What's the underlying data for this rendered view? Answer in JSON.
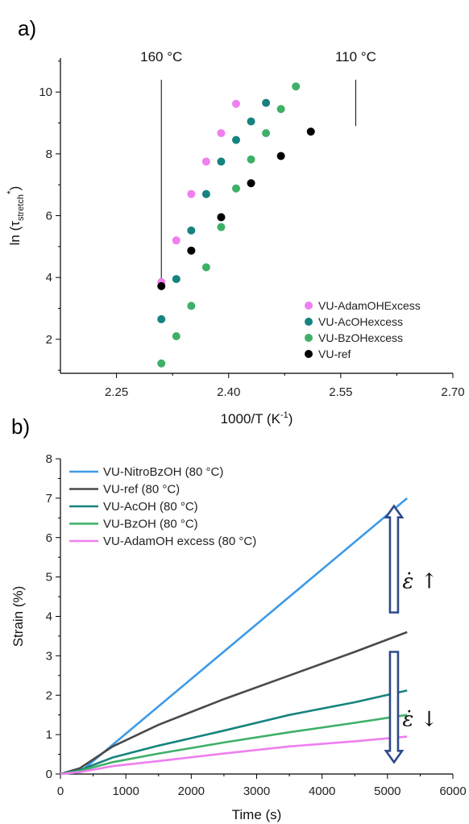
{
  "panel_a_label": "a)",
  "panel_b_label": "b)",
  "chart_data": [
    {
      "type": "scatter",
      "xlabel": "1000/T (K",
      "xlabel_sup": "-1",
      "xlabel_end": ")",
      "ylabel": "ln (τ",
      "ylabel_sub": "stretch",
      "ylabel_sup": "*",
      "ylabel_end": ")",
      "xlim": [
        2.175,
        2.7
      ],
      "ylim": [
        0.9,
        11.1
      ],
      "x_ticks": [
        2.25,
        2.4,
        2.55,
        2.7
      ],
      "x_tick_labels": [
        "2.25",
        "2.40",
        "2.55",
        "2.70"
      ],
      "y_ticks": [
        2,
        4,
        6,
        8,
        10
      ],
      "y_tick_labels": [
        "2",
        "4",
        "6",
        "8",
        "10"
      ],
      "annotations": [
        {
          "text": "160 °C",
          "x": 2.31,
          "y_text": 11.0,
          "y_line_top": 10.4,
          "y_line_bottom": 3.9
        },
        {
          "text": "110 °C",
          "x": 2.57,
          "y_text": 11.0,
          "y_line_top": 10.4,
          "y_line_bottom": 8.9
        }
      ],
      "legend_position": "bottom-right",
      "series": [
        {
          "name": "VU-AdamOHExcess",
          "color": "#ef7fef",
          "x": [
            2.31,
            2.33,
            2.35,
            2.37,
            2.39,
            2.41
          ],
          "y": [
            3.85,
            5.2,
            6.7,
            7.75,
            8.67,
            9.62
          ]
        },
        {
          "name": "VU-AcOHexcess",
          "color": "#16837f",
          "x": [
            2.31,
            2.33,
            2.35,
            2.37,
            2.39,
            2.41,
            2.43,
            2.45,
            2.47
          ],
          "y": [
            2.65,
            3.95,
            5.52,
            6.7,
            7.75,
            8.45,
            9.05,
            9.65,
            null
          ]
        },
        {
          "name": "VU-BzOHexcess",
          "color": "#3eb067",
          "x": [
            2.31,
            2.33,
            2.35,
            2.37,
            2.39,
            2.41,
            2.43,
            2.45,
            2.47,
            2.49,
            2.51
          ],
          "y": [
            1.22,
            2.1,
            3.08,
            4.33,
            5.63,
            6.88,
            7.82,
            8.67,
            9.45,
            10.18,
            null
          ]
        },
        {
          "name": "VU-ref",
          "color": "#000000",
          "x": [
            2.31,
            2.35,
            2.39,
            2.43,
            2.47,
            2.51
          ],
          "y": [
            3.72,
            4.87,
            5.95,
            7.05,
            7.93,
            8.72
          ]
        }
      ]
    },
    {
      "type": "line",
      "xlabel": "Time (s)",
      "ylabel": "Strain (%)",
      "xlim": [
        0,
        6000
      ],
      "ylim": [
        0,
        8
      ],
      "x_ticks": [
        0,
        1000,
        2000,
        3000,
        4000,
        5000,
        6000
      ],
      "x_tick_labels": [
        "0",
        "1000",
        "2000",
        "3000",
        "4000",
        "5000",
        "6000"
      ],
      "y_ticks": [
        0,
        1,
        2,
        3,
        4,
        5,
        6,
        7,
        8
      ],
      "y_tick_labels": [
        "0",
        "1",
        "2",
        "3",
        "4",
        "5",
        "6",
        "7",
        "8"
      ],
      "legend_position": "top-left",
      "series": [
        {
          "name": "VU-NitroBzOH (80 °C)",
          "color": "#3d9be9",
          "x": [
            0,
            300,
            5300
          ],
          "y": [
            0,
            0.05,
            7.0
          ]
        },
        {
          "name": "VU-ref (80 °C)",
          "color": "#4a4a4a",
          "x": [
            0,
            300,
            800,
            1500,
            2500,
            3500,
            4500,
            5300
          ],
          "y": [
            0,
            0.15,
            0.7,
            1.25,
            1.9,
            2.5,
            3.1,
            3.6
          ]
        },
        {
          "name": "VU-AcOH (80 °C)",
          "color": "#16837f",
          "x": [
            0,
            300,
            800,
            1500,
            2500,
            3500,
            4500,
            5300
          ],
          "y": [
            0,
            0.1,
            0.42,
            0.72,
            1.1,
            1.5,
            1.82,
            2.12
          ]
        },
        {
          "name": "VU-BzOH (80 °C)",
          "color": "#3eb067",
          "x": [
            0,
            300,
            800,
            1500,
            2500,
            3500,
            4500,
            5300
          ],
          "y": [
            0,
            0.08,
            0.3,
            0.52,
            0.8,
            1.06,
            1.3,
            1.5
          ]
        },
        {
          "name": "VU-AdamOH excess (80 °C)",
          "color": "#ef7fef",
          "x": [
            0,
            300,
            800,
            1500,
            2500,
            3500,
            4500,
            5300
          ],
          "y": [
            0,
            0.05,
            0.2,
            0.33,
            0.52,
            0.7,
            0.83,
            0.95
          ]
        }
      ],
      "rate_labels": [
        {
          "text": "ε̇ ↑",
          "x": 5500,
          "y": 4.9
        },
        {
          "text": "ε̇ ↓",
          "x": 5500,
          "y": 1.4
        }
      ],
      "arrow_color": "#2d4a8a",
      "arrows": [
        {
          "direction": "up",
          "x": 5100,
          "y_from": 4.1,
          "y_to": 6.8
        },
        {
          "direction": "down",
          "x": 5100,
          "y_from": 3.1,
          "y_to": 0.3
        }
      ]
    }
  ]
}
